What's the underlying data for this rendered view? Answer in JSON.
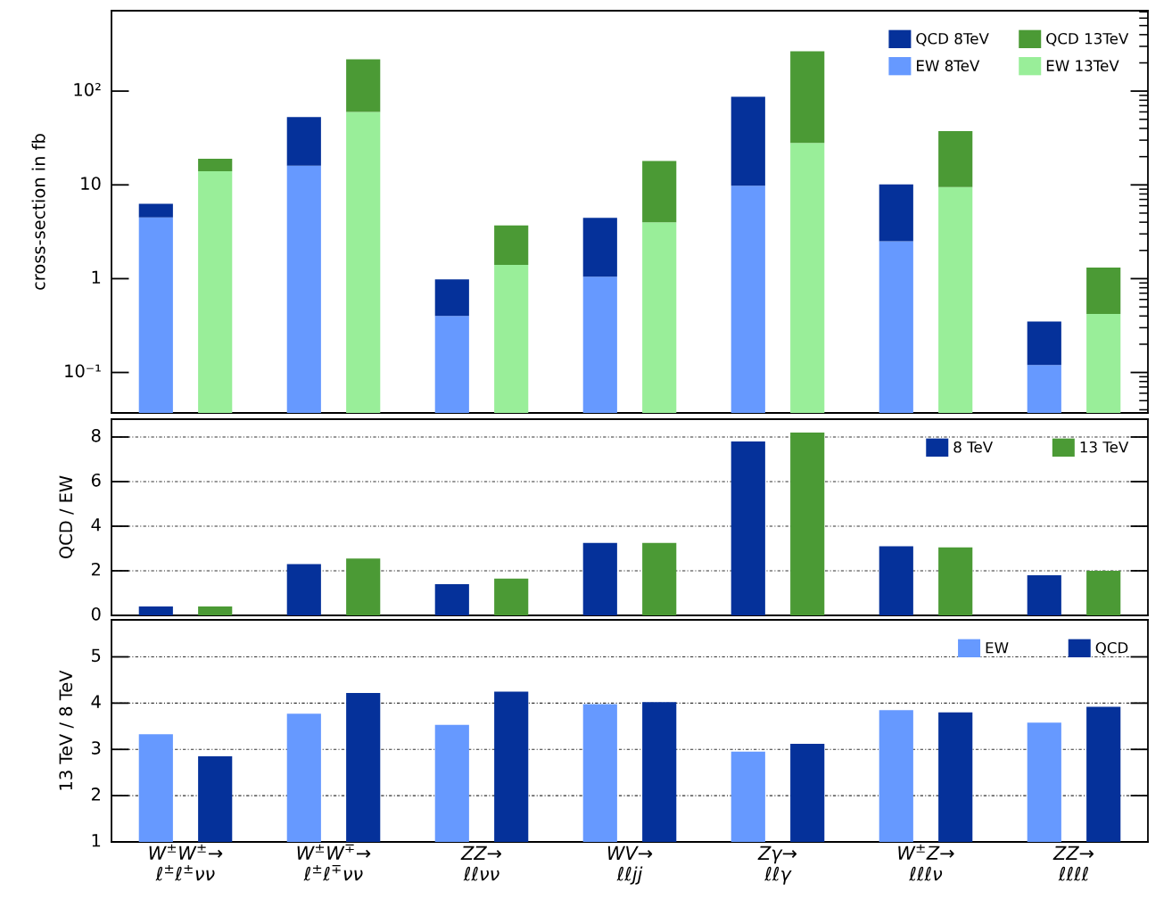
{
  "chart_data": [
    {
      "type": "bar",
      "ylabel": "cross-section in fb",
      "categories": [
        null,
        null,
        null,
        null,
        null,
        null,
        null,
        null,
        null,
        null,
        null,
        null,
        null,
        null
      ],
      "stacked": true,
      "log": "y",
      "ylim": [
        0.037,
        720
      ],
      "yticks": [
        {
          "value": 0.04,
          "label": null
        },
        {
          "value": 0.05,
          "label": null
        },
        {
          "value": 0.06,
          "label": null
        },
        {
          "value": 0.07,
          "label": null
        },
        {
          "value": 0.08,
          "label": null
        },
        {
          "value": 0.09,
          "label": null
        },
        {
          "value": 0.1,
          "label": "10⁻¹"
        },
        {
          "value": 0.2,
          "label": null
        },
        {
          "value": 0.3,
          "label": null
        },
        {
          "value": 0.4,
          "label": null
        },
        {
          "value": 0.5,
          "label": null
        },
        {
          "value": 0.6,
          "label": null
        },
        {
          "value": 0.7,
          "label": null
        },
        {
          "value": 0.8,
          "label": null
        },
        {
          "value": 0.9,
          "label": null
        },
        1,
        {
          "value": 2,
          "label": null
        },
        {
          "value": 3,
          "label": null
        },
        {
          "value": 4,
          "label": null
        },
        {
          "value": 5,
          "label": null
        },
        {
          "value": 6,
          "label": null
        },
        {
          "value": 7,
          "label": null
        },
        {
          "value": 8,
          "label": null
        },
        {
          "value": 9,
          "label": null
        },
        10,
        {
          "value": 20,
          "label": null
        },
        {
          "value": 30,
          "label": null
        },
        {
          "value": 40,
          "label": null
        },
        {
          "value": 50,
          "label": null
        },
        {
          "value": 60,
          "label": null
        },
        {
          "value": 70,
          "label": null
        },
        {
          "value": 80,
          "label": null
        },
        {
          "value": 90,
          "label": null
        },
        {
          "value": 100,
          "label": "10²"
        },
        {
          "value": 200,
          "label": null
        },
        {
          "value": 300,
          "label": null
        },
        {
          "value": 400,
          "label": null
        },
        {
          "value": 500,
          "label": null
        },
        {
          "value": 600,
          "label": null
        },
        {
          "value": 700,
          "label": null
        }
      ],
      "tick_labels": "y",
      "legend": "top right",
      "series": [
        {
          "name": "EW 8TeV",
          "color": "#6699ff",
          "values": [
            4.5,
            null,
            16,
            null,
            0.4,
            null,
            1.05,
            null,
            9.8,
            null,
            2.5,
            null,
            0.12,
            null
          ]
        },
        {
          "name": "QCD 8TeV",
          "color": "#05319a",
          "values": [
            1.8,
            null,
            37,
            null,
            0.58,
            null,
            3.4,
            null,
            77,
            null,
            7.6,
            null,
            0.23,
            null
          ]
        },
        {
          "name": "EW 13TeV",
          "color": "#99ee99",
          "values": [
            null,
            14,
            null,
            60,
            null,
            1.4,
            null,
            4.0,
            null,
            28,
            null,
            9.5,
            null,
            0.42
          ]
        },
        {
          "name": "QCD 13TeV",
          "color": "#4b9a35",
          "values": [
            null,
            5.0,
            null,
            158,
            null,
            2.3,
            null,
            14,
            null,
            238,
            null,
            28,
            null,
            0.89
          ]
        }
      ]
    },
    {
      "type": "bar",
      "ylabel": "QCD / EW",
      "categories": [
        null,
        null,
        null,
        null,
        null,
        null,
        null
      ],
      "ylim": [
        0,
        8.8
      ],
      "yticks": [
        0,
        2,
        4,
        6,
        8
      ],
      "grid": "y",
      "tick_labels": "y",
      "legend": "top right",
      "series": [
        {
          "name": "8 TeV",
          "color": "#05319a",
          "values": [
            0.4,
            2.3,
            1.4,
            3.25,
            7.8,
            3.1,
            1.8
          ]
        },
        {
          "name": "13 TeV",
          "color": "#4b9a35",
          "values": [
            0.4,
            2.55,
            1.65,
            3.25,
            8.2,
            3.05,
            2.0
          ]
        }
      ]
    },
    {
      "type": "bar",
      "ylabel": "13 TeV / 8 TeV",
      "categories": [
        "W$^{±}$W$^{±}$→\nℓ$^{±}$ℓ$^{±}$νν",
        "W$^{±}$W$^{∓}$→\nℓ$^{±}$ℓ$^{∓}$νν",
        "ZZ→\nℓℓνν",
        "WV→\nℓℓjj",
        "Zγ→\nℓℓγ",
        "W$^{±}$Z→\nℓℓℓν",
        "ZZ→\nℓℓℓℓ"
      ],
      "ylim": [
        1,
        5.8
      ],
      "yticks": [
        1,
        2,
        3,
        4,
        5
      ],
      "grid": "y",
      "legend": "top right",
      "series": [
        {
          "name": "EW",
          "color": "#6699ff",
          "values": [
            3.33,
            3.77,
            3.53,
            3.98,
            2.95,
            3.85,
            3.58
          ]
        },
        {
          "name": "QCD",
          "color": "#05319a",
          "values": [
            2.85,
            4.22,
            4.25,
            4.02,
            3.12,
            3.8,
            3.92
          ]
        }
      ]
    }
  ]
}
